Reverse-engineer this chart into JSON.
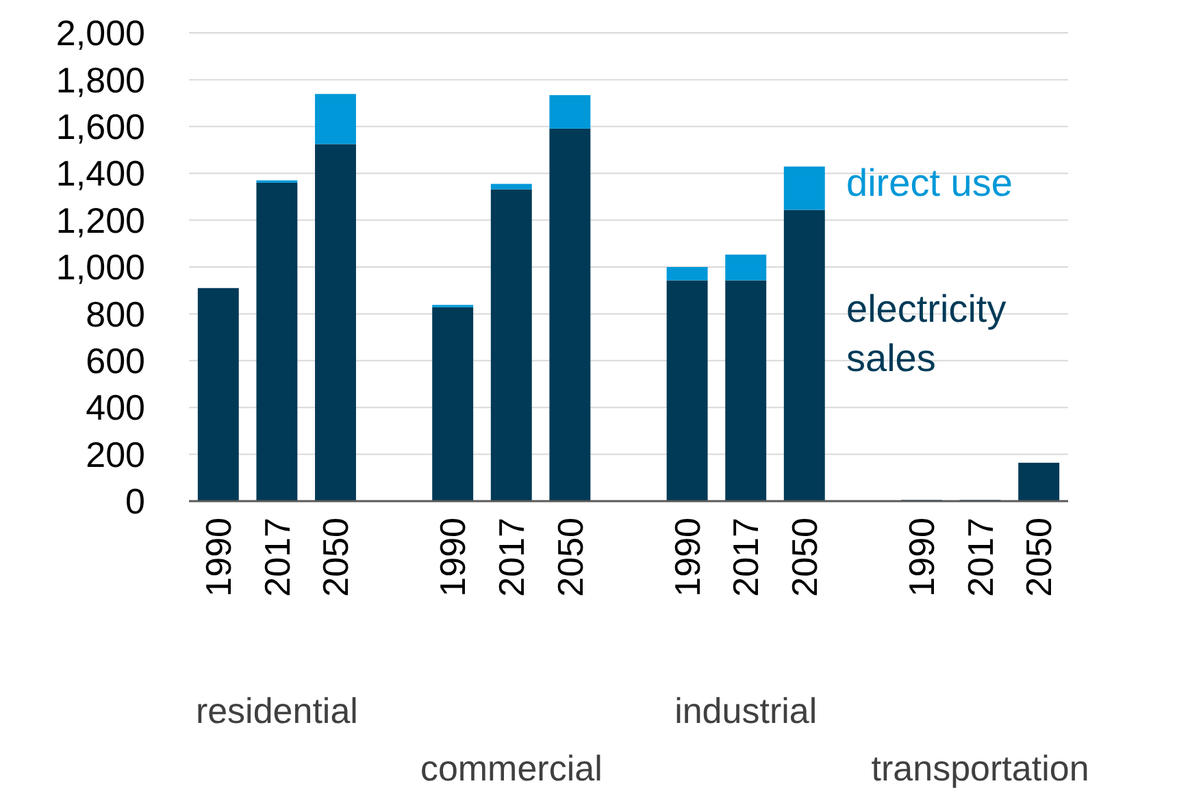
{
  "chart_data": {
    "type": "bar",
    "stacked": true,
    "categories": [
      "1990",
      "2017",
      "2050",
      null,
      "1990",
      "2017",
      "2050",
      null,
      "1990",
      "2017",
      "2050",
      null,
      "1990",
      "2017",
      "2050"
    ],
    "series": [
      {
        "name": "electricity sales",
        "color": "#003a57",
        "values": [
          910,
          1360,
          1525,
          null,
          828,
          1332,
          1591,
          null,
          943,
          943,
          1244,
          null,
          5,
          5,
          164
        ]
      },
      {
        "name": "direct use",
        "color": "#0098d8",
        "values": [
          0,
          10,
          214,
          null,
          10,
          23,
          143,
          null,
          57,
          110,
          185,
          null,
          0,
          0,
          0
        ]
      }
    ],
    "ylim": [
      0,
      2000
    ],
    "yticks": [
      0,
      {
        "value": 200,
        "label": "200"
      },
      {
        "value": 400,
        "label": "400"
      },
      {
        "value": 600,
        "label": "600"
      },
      {
        "value": 800,
        "label": "800"
      },
      {
        "value": 1000,
        "label": "1,000"
      },
      {
        "value": 1200,
        "label": "1,200"
      },
      {
        "value": 1400,
        "label": "1,400"
      },
      {
        "value": 1600,
        "label": "1,600"
      },
      {
        "value": 1800,
        "label": "1,800"
      },
      {
        "value": 2000,
        "label": "2,000"
      }
    ],
    "grid": "y",
    "legend": "right",
    "annotations": [
      "residential",
      "commercial",
      "industrial",
      "transportation"
    ]
  }
}
